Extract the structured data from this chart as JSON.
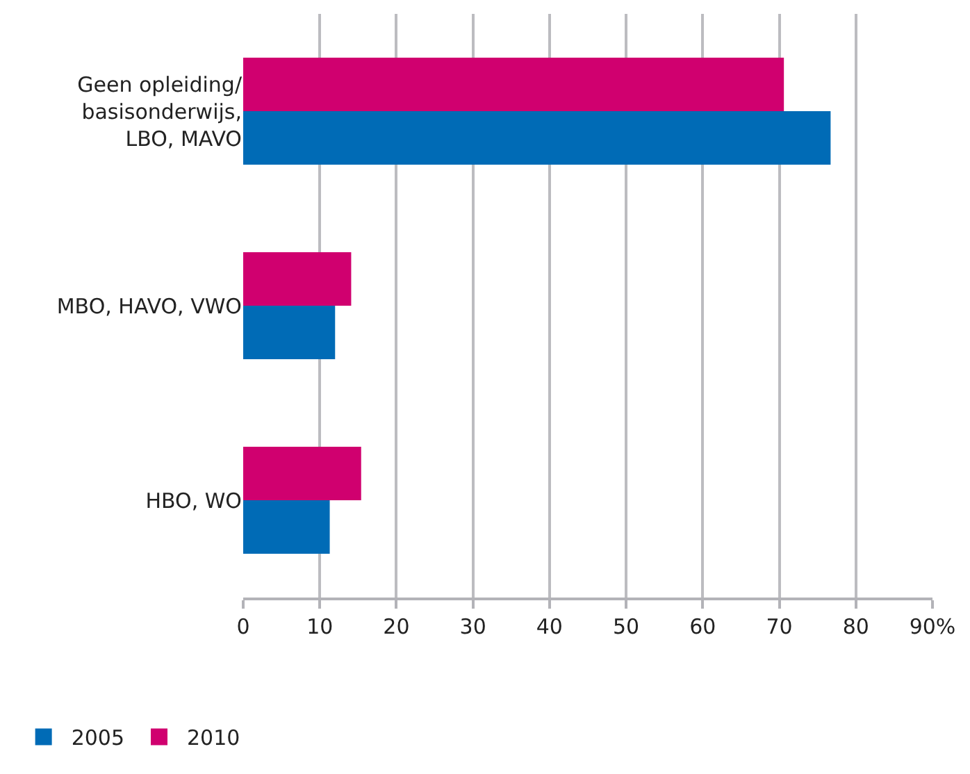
{
  "chart_data": {
    "type": "bar",
    "orientation": "horizontal",
    "categories": [
      "Geen opleiding/\nbasisonderwijs,\nLBO, MAVO",
      "MBO, HAVO, VWO",
      "HBO, WO"
    ],
    "series": [
      {
        "name": "2005",
        "color": "#006bb6",
        "values": [
          76.7,
          12.0,
          11.3
        ]
      },
      {
        "name": "2010",
        "color": "#d0006f",
        "values": [
          70.6,
          14.1,
          15.4
        ]
      }
    ],
    "xlim": [
      0,
      90
    ],
    "xticks": [
      0,
      10,
      20,
      30,
      40,
      50,
      60,
      70,
      80,
      {
        "value": 90,
        "label": "90%"
      }
    ],
    "grid": "x",
    "legend": "bottom left"
  }
}
